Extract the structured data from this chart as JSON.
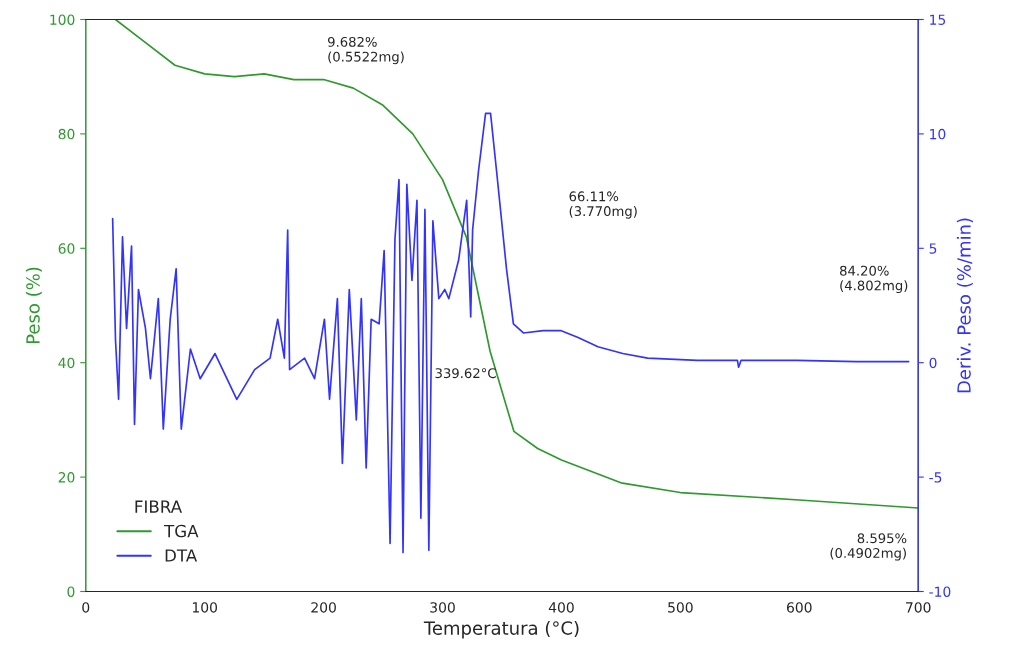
{
  "chart_data": {
    "type": "line",
    "xlabel": "Temperatura (°C)",
    "ylabel": "Peso (%)",
    "y2label": "Deriv. Peso (%/min)",
    "legend_title": "FIBRA",
    "legend": "bottom left",
    "grid": false,
    "xlim": [
      0,
      700
    ],
    "xticks": [
      0,
      100,
      200,
      300,
      400,
      500,
      600,
      700
    ],
    "ylim": [
      0,
      100
    ],
    "yticks": [
      0,
      20,
      40,
      60,
      80,
      100
    ],
    "y2lim": [
      -10,
      15
    ],
    "y2ticks": [
      -10,
      -5,
      0,
      5,
      10,
      15
    ],
    "series": [
      {
        "name": "TGA",
        "color": "#2e9a2e",
        "x": [
          25,
          50,
          75,
          100,
          125,
          150,
          175,
          200,
          225,
          250,
          275,
          300,
          320,
          340,
          360,
          380,
          400,
          450,
          500,
          600,
          700
        ],
        "values": [
          100,
          96,
          92,
          90.5,
          90,
          90.5,
          89.5,
          89.5,
          88,
          85,
          80,
          72,
          62,
          42,
          28,
          25,
          23,
          19,
          17.3,
          16,
          14.6
        ]
      },
      {
        "name": "DTA",
        "color": "#3333ff",
        "axis": "y2",
        "x": [
          22.6,
          25,
          27.6,
          30.9,
          34.3,
          38.5,
          41,
          44.3,
          50.2,
          54.4,
          61,
          65.2,
          71,
          76,
          80.3,
          88,
          96.2,
          108.7,
          127,
          142,
          155,
          161.4,
          167,
          169.8,
          171.4,
          184,
          192.4,
          200.7,
          205,
          211.6,
          215.8,
          221.6,
          227.5,
          231.7,
          235.8,
          240,
          246.7,
          250.9,
          255.9,
          260,
          263.4,
          266.8,
          270,
          274.3,
          278.5,
          281.8,
          285.2,
          288.5,
          291.9,
          296.9,
          301.9,
          305.3,
          313.6,
          320.3,
          323.7,
          325.3,
          330.3,
          336.2,
          340.4,
          345.4,
          353.8,
          359.6,
          368,
          384.7,
          399.8,
          414,
          430.7,
          451.6,
          472.5,
          514.3,
          548,
          549,
          551,
          598,
          648,
          692
        ],
        "values": [
          6.3,
          1.0,
          -1.6,
          5.5,
          1.5,
          5.1,
          -2.7,
          3.2,
          1.5,
          -0.7,
          2.8,
          -2.9,
          1.9,
          4.1,
          -2.9,
          0.6,
          -0.7,
          0.4,
          -1.6,
          -0.3,
          0.2,
          1.9,
          0.2,
          5.8,
          -0.3,
          0.2,
          -0.7,
          1.9,
          -1.6,
          2.8,
          -4.4,
          3.2,
          -2.5,
          2.8,
          -4.6,
          1.9,
          1.7,
          4.9,
          -7.9,
          5.4,
          8.0,
          -8.3,
          7.8,
          3.6,
          7.1,
          -6.8,
          6.7,
          -8.2,
          6.2,
          2.8,
          3.2,
          2.8,
          4.5,
          7.1,
          2.0,
          5.8,
          8.4,
          10.9,
          10.9,
          8.4,
          4.1,
          1.7,
          1.3,
          1.4,
          1.4,
          1.1,
          0.7,
          0.4,
          0.2,
          0.1,
          0.1,
          -0.2,
          0.1,
          0.1,
          0.05,
          0.05
        ]
      }
    ],
    "annotations": [
      "9.682%\n(0.5522mg)",
      "66.11%\n(3.770mg)",
      "84.20%\n(4.802mg)",
      {
        "text": "8.595%\n(0.4902mg)",
        "x": 700,
        "y": 14.6
      },
      {
        "text": "339.62°C",
        "x": 340,
        "y": 42
      }
    ]
  }
}
